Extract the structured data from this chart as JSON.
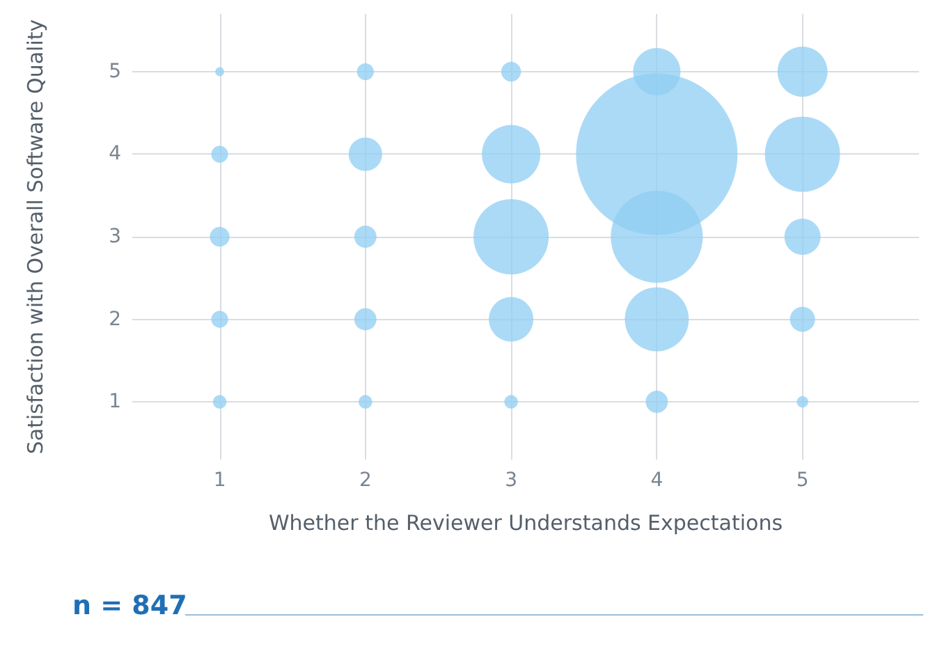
{
  "chart_data": {
    "type": "bubble",
    "xlabel": "Whether the Reviewer Understands Expectations",
    "ylabel": "Satisfaction with Overall Software Quality",
    "annotations": [
      "n = 847"
    ],
    "x": [
      1,
      1,
      1,
      1,
      1,
      2,
      2,
      2,
      2,
      2,
      3,
      3,
      3,
      3,
      3,
      4,
      4,
      4,
      4,
      4,
      5,
      5,
      5,
      5,
      5
    ],
    "values": [
      5,
      4,
      3,
      2,
      1,
      5,
      4,
      3,
      2,
      1,
      5,
      4,
      3,
      2,
      1,
      5,
      4,
      3,
      2,
      1,
      5,
      4,
      3,
      2,
      1
    ],
    "sizes": [
      0.003,
      0.011,
      0.015,
      0.011,
      0.007,
      0.011,
      0.043,
      0.019,
      0.019,
      0.007,
      0.015,
      0.131,
      0.217,
      0.076,
      0.007,
      0.086,
      1,
      0.324,
      0.157,
      0.019,
      0.096,
      0.217,
      0.05,
      0.024,
      0.005
    ],
    "color": "#8fcdf3",
    "xlim": [
      0.4,
      5.8
    ],
    "ylim": [
      0.3,
      5.7
    ],
    "xticks": [
      1,
      2,
      3,
      4,
      5
    ],
    "yticks": [
      1,
      2,
      3,
      4,
      5
    ],
    "grid": true
  }
}
